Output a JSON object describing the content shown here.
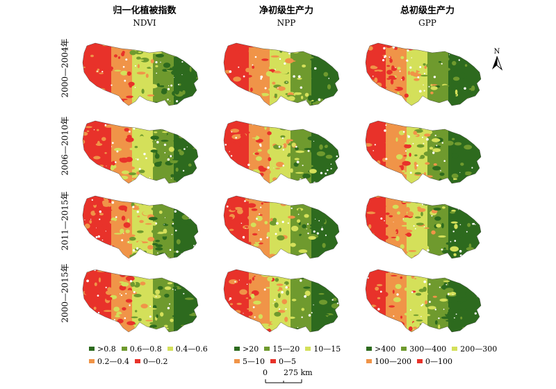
{
  "columns": [
    {
      "title_zh": "归一化植被指数",
      "title_en": "NDVI"
    },
    {
      "title_zh": "净初级生产力",
      "title_en": "NPP"
    },
    {
      "title_zh": "总初级生产力",
      "title_en": "GPP"
    }
  ],
  "rows": [
    {
      "label": "2000—2004年"
    },
    {
      "label": "2006—2010年"
    },
    {
      "label": "2011—2015年"
    },
    {
      "label": "2000—2015年"
    }
  ],
  "north_arrow": {
    "letter": "N"
  },
  "scale_bar": {
    "start": "0",
    "end": "275 km"
  },
  "legends": [
    {
      "classes": [
        {
          "label": ">0.8",
          "color": "#2d6a1e"
        },
        {
          "label": "0.6—0.8",
          "color": "#6f9a2e"
        },
        {
          "label": "0.4—0.6",
          "color": "#d4e05a"
        },
        {
          "label": "0.2—0.4",
          "color": "#f09448"
        },
        {
          "label": "0—0.2",
          "color": "#e8322a"
        }
      ]
    },
    {
      "classes": [
        {
          "label": ">20",
          "color": "#2d6a1e"
        },
        {
          "label": "15—20",
          "color": "#6f9a2e"
        },
        {
          "label": "10—15",
          "color": "#d4e05a"
        },
        {
          "label": "5—10",
          "color": "#f09448"
        },
        {
          "label": "0—5",
          "color": "#e8322a"
        }
      ]
    },
    {
      "classes": [
        {
          "label": ">400",
          "color": "#2d6a1e"
        },
        {
          "label": "300—400",
          "color": "#6f9a2e"
        },
        {
          "label": "200—300",
          "color": "#d4e05a"
        },
        {
          "label": "100—200",
          "color": "#f09448"
        },
        {
          "label": "0—100",
          "color": "#e8322a"
        }
      ]
    }
  ]
}
